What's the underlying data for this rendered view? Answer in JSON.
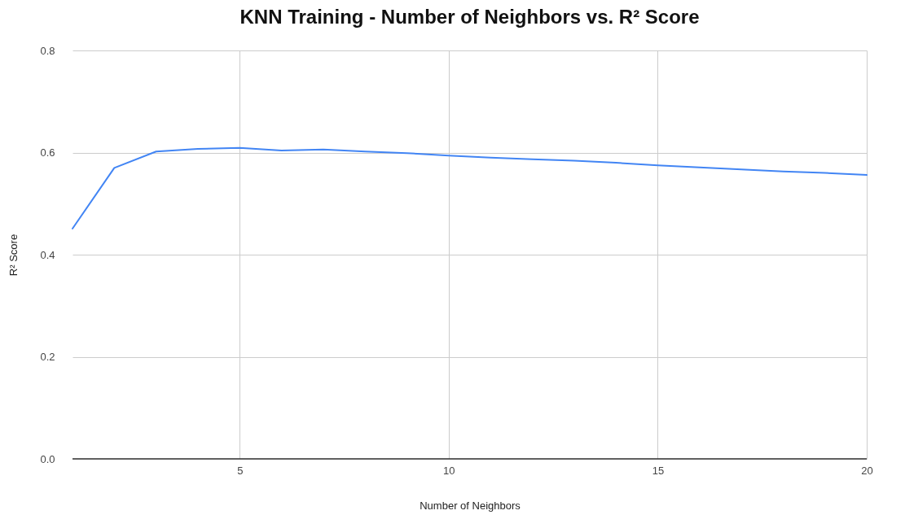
{
  "chart_data": {
    "type": "line",
    "title": "KNN Training - Number of Neighbors vs. R² Score",
    "xlabel": "Number of Neighbors",
    "ylabel": "R² Score",
    "x": [
      1,
      2,
      3,
      4,
      5,
      6,
      7,
      8,
      9,
      10,
      11,
      12,
      13,
      14,
      15,
      16,
      17,
      18,
      19,
      20
    ],
    "series": [
      {
        "color": "#4285f4",
        "values": [
          0.451,
          0.57,
          0.602,
          0.607,
          0.609,
          0.604,
          0.606,
          0.602,
          0.599,
          0.594,
          0.59,
          0.587,
          0.584,
          0.58,
          0.575,
          0.571,
          0.567,
          0.563,
          0.56,
          0.556
        ]
      }
    ],
    "xlim": [
      1,
      20
    ],
    "xticks": [
      5,
      10,
      15,
      20
    ],
    "ylim": [
      0,
      0.8
    ],
    "yticks": [
      {
        "value": 0,
        "label": "0.0"
      },
      0.2,
      0.4,
      0.6,
      0.8
    ],
    "grid": true,
    "marker": "none",
    "line_style": "solid"
  }
}
